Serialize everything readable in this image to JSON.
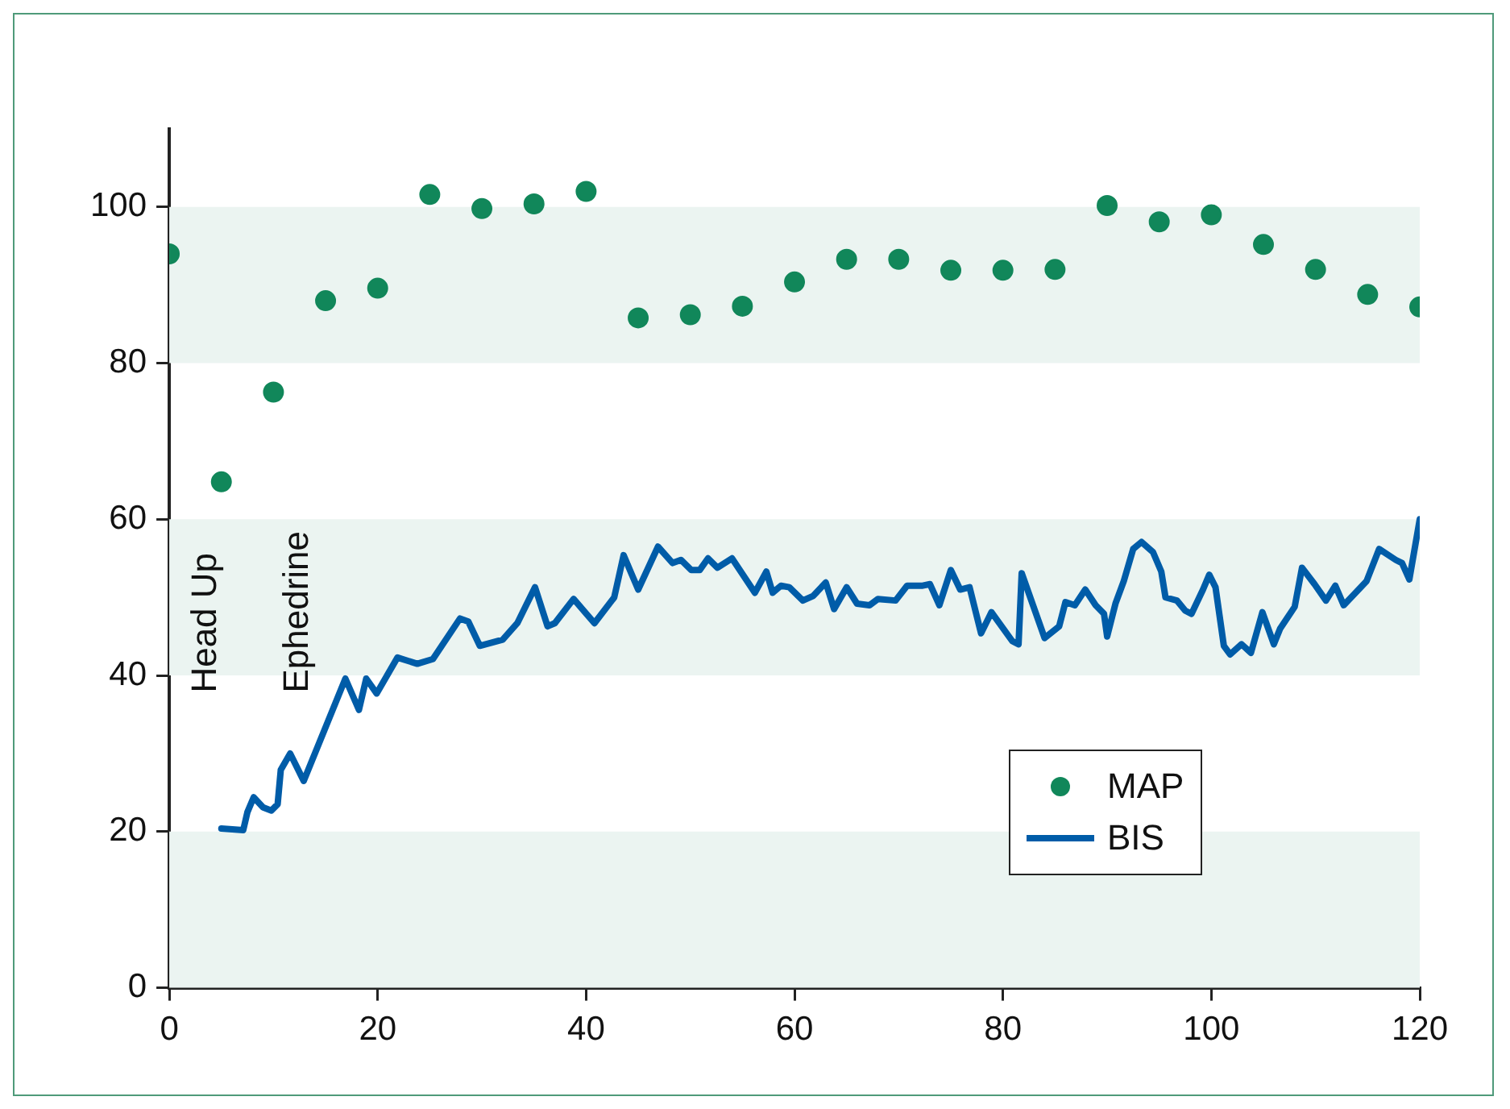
{
  "chart_data": {
    "type": "line",
    "xlim": [
      0,
      120
    ],
    "xticks": [
      0,
      20,
      40,
      60,
      80,
      100,
      120
    ],
    "ylim": [
      0,
      110
    ],
    "yticks": [
      0,
      20,
      40,
      60,
      80,
      100
    ],
    "grid": false,
    "legend": "bottom right",
    "bands": [
      {
        "axis": "y",
        "from": 0,
        "to": 20,
        "color": "#ebf4f1"
      },
      {
        "axis": "y",
        "from": 40,
        "to": 60,
        "color": "#ebf4f1"
      },
      {
        "axis": "y",
        "from": 80,
        "to": 100,
        "color": "#ebf4f1"
      }
    ],
    "annotations": [
      "Head Up",
      "Ephedrine"
    ],
    "series": [
      {
        "name": "MAP",
        "type": "scatter",
        "marker": "circle",
        "color": "#11875a",
        "x": [
          0,
          5,
          10,
          15,
          20,
          25,
          30,
          35,
          40,
          45,
          50,
          55,
          60,
          65,
          70,
          75,
          80,
          85,
          90,
          95,
          100,
          105,
          110,
          115,
          120
        ],
        "values": [
          94,
          64.8,
          76.3,
          88,
          89.6,
          101.6,
          99.8,
          100.4,
          102,
          85.8,
          86.2,
          87.3,
          90.4,
          93.3,
          93.3,
          91.9,
          91.9,
          92,
          100.2,
          98.1,
          99,
          95.2,
          92,
          88.8,
          87.2
        ]
      },
      {
        "name": "BIS",
        "type": "line",
        "marker": "none",
        "line_style": "solid",
        "color": "#005ca8",
        "x": [
          5,
          7.1,
          7.5,
          8.1,
          9,
          9.8,
          10.4,
          10.7,
          11.6,
          12.9,
          16.9,
          18.2,
          18.9,
          19.9,
          21.9,
          23.8,
          25.3,
          27.9,
          28.7,
          29.8,
          32,
          33.4,
          35.1,
          36.3,
          37,
          38.8,
          40.8,
          42.7,
          43.6,
          45,
          46.9,
          48.3,
          49.1,
          50.1,
          50.9,
          51.7,
          52.6,
          54,
          56.2,
          57.3,
          57.9,
          58.7,
          59.5,
          60.8,
          61.8,
          63,
          63.8,
          65,
          66,
          67.2,
          68,
          69.7,
          70.8,
          72.3,
          73,
          73.9,
          75,
          75.9,
          76.8,
          77.9,
          78.9,
          80.9,
          81.5,
          81.8,
          84,
          85.4,
          86,
          86.9,
          87.9,
          88.9,
          89.7,
          90,
          90.8,
          91.6,
          92.5,
          93.3,
          94.4,
          95.2,
          95.6,
          96.7,
          97.5,
          98.1,
          99.2,
          99.8,
          100.4,
          101.2,
          101.8,
          102.9,
          103.8,
          104.9,
          106,
          106.6,
          108,
          108.7,
          109.9,
          111,
          111.9,
          112.7,
          114.9,
          116.1,
          117.7,
          118.3,
          119,
          120
        ],
        "values": [
          20.4,
          20.2,
          22.5,
          24.4,
          23.1,
          22.7,
          23.5,
          27.9,
          30,
          26.5,
          39.6,
          35.6,
          39.6,
          37.7,
          42.3,
          41.5,
          42.1,
          47.3,
          46.9,
          43.8,
          44.6,
          46.7,
          51.3,
          46.3,
          46.7,
          49.8,
          46.7,
          50,
          55.4,
          51,
          56.5,
          54.4,
          54.8,
          53.5,
          53.5,
          55,
          53.8,
          55,
          50.6,
          53.3,
          50.6,
          51.5,
          51.3,
          49.6,
          50.2,
          51.9,
          48.5,
          51.3,
          49.2,
          49,
          49.8,
          49.6,
          51.5,
          51.5,
          51.7,
          49,
          53.5,
          51,
          51.3,
          45.4,
          48.1,
          44.4,
          44,
          53.1,
          44.8,
          46.3,
          49.4,
          49,
          51,
          49,
          47.9,
          45,
          49.2,
          52.1,
          56.2,
          57.1,
          55.8,
          53.3,
          50,
          49.6,
          48.3,
          47.9,
          51,
          52.9,
          51.3,
          43.8,
          42.7,
          44,
          42.9,
          48.1,
          44,
          46,
          48.8,
          53.8,
          51.7,
          49.6,
          51.5,
          49,
          52.1,
          56.2,
          54.8,
          54.4,
          52.3,
          60
        ]
      }
    ]
  }
}
